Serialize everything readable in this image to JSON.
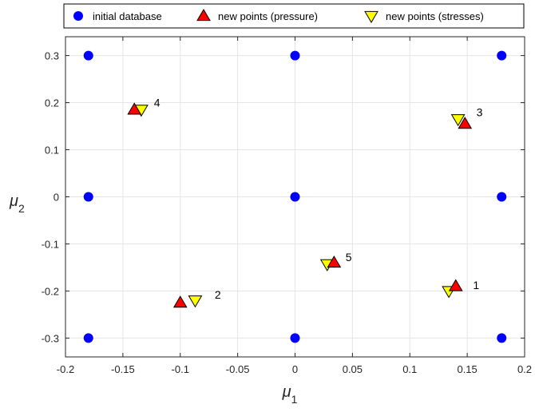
{
  "chart_data": {
    "type": "scatter",
    "xlabel": "μ",
    "xlabel_sub": "1",
    "ylabel": "μ",
    "ylabel_sub": "2",
    "xlim": [
      -0.2,
      0.2
    ],
    "ylim": [
      -0.34,
      0.34
    ],
    "xticks": [
      -0.2,
      -0.15,
      -0.1,
      -0.05,
      0,
      0.05,
      0.1,
      0.15,
      0.2
    ],
    "xtick_labels": [
      "-0.2",
      "-0.15",
      "-0.1",
      "-0.05",
      "0",
      "0.05",
      "0.1",
      "0.15",
      "0.2"
    ],
    "yticks": [
      -0.3,
      -0.2,
      -0.1,
      0,
      0.1,
      0.2,
      0.3
    ],
    "ytick_labels": [
      "-0.3",
      "-0.2",
      "-0.1",
      "0",
      "0.1",
      "0.2",
      "0.3"
    ],
    "grid": true,
    "legend_placement": "top-outside",
    "series": [
      {
        "name": "initial database",
        "marker": "circle",
        "color": "#0000ff",
        "points": [
          [
            -0.18,
            0.3
          ],
          [
            0,
            0.3
          ],
          [
            0.18,
            0.3
          ],
          [
            -0.18,
            0
          ],
          [
            0,
            0
          ],
          [
            0.18,
            0
          ],
          [
            -0.18,
            -0.3
          ],
          [
            0,
            -0.3
          ],
          [
            0.18,
            -0.3
          ]
        ]
      },
      {
        "name": "new points (pressure)",
        "marker": "triangle-up",
        "color": "#ff0000",
        "points": [
          [
            0.14,
            -0.19
          ],
          [
            -0.1,
            -0.225
          ],
          [
            0.148,
            0.155
          ],
          [
            -0.14,
            0.185
          ],
          [
            0.034,
            -0.14
          ]
        ]
      },
      {
        "name": "new points (stresses)",
        "marker": "triangle-down",
        "color": "#ffff00",
        "points": [
          [
            0.134,
            -0.2
          ],
          [
            -0.087,
            -0.22
          ],
          [
            0.142,
            0.165
          ],
          [
            -0.134,
            0.185
          ],
          [
            0.028,
            -0.143
          ]
        ]
      }
    ],
    "annotations": [
      {
        "text": "1",
        "x": 0.155,
        "y": -0.187
      },
      {
        "text": "2",
        "x": -0.07,
        "y": -0.208
      },
      {
        "text": "3",
        "x": 0.158,
        "y": 0.18
      },
      {
        "text": "4",
        "x": -0.123,
        "y": 0.2
      },
      {
        "text": "5",
        "x": 0.044,
        "y": -0.128
      }
    ]
  }
}
